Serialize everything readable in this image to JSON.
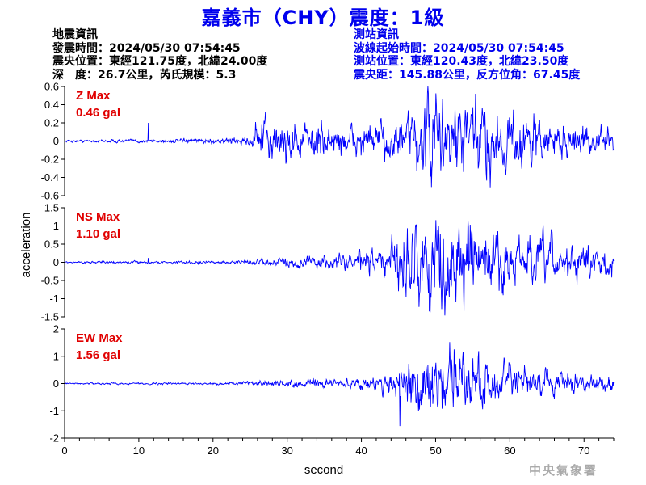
{
  "header": {
    "title": "嘉義市（CHY）震度：1級"
  },
  "earthquake_info": {
    "heading": "地震資訊",
    "origin_time": "發震時間：2024/05/30 07:54:45",
    "epicenter": "震央位置：東經121.75度，北緯24.00度",
    "depth_magnitude": "深　度：26.7公里，芮氏規模：5.3"
  },
  "station_info": {
    "heading": "測站資訊",
    "wave_start": "波線起始時間：2024/05/30 07:54:45",
    "location": "測站位置：東經120.43度，北緯23.50度",
    "distance_azimuth": "震央距：145.88公里，反方位角：67.45度"
  },
  "agency": "中央氣象署",
  "chart_data": {
    "type": "line",
    "x_label": "second",
    "y_label": "acceleration",
    "x_range": [
      0,
      74
    ],
    "x_ticks": [
      0,
      10,
      20,
      30,
      40,
      50,
      60,
      70
    ],
    "series_color": "#0000ff",
    "panels": [
      {
        "component": "Z",
        "max_label": "Z Max",
        "max_value": "0.46 gal",
        "y_range": [
          -0.6,
          0.6
        ],
        "y_ticks": [
          0.6,
          0.4,
          0.2,
          0,
          -0.2,
          -0.4,
          -0.6
        ],
        "amplitude_envelope": [
          [
            0,
            0.01
          ],
          [
            11,
            0.015
          ],
          [
            20,
            0.02
          ],
          [
            25,
            0.04
          ],
          [
            25.8,
            0.18
          ],
          [
            30,
            0.17
          ],
          [
            33,
            0.15
          ],
          [
            40,
            0.12
          ],
          [
            44,
            0.16
          ],
          [
            47,
            0.22
          ],
          [
            48,
            0.35
          ],
          [
            50,
            0.38
          ],
          [
            53,
            0.33
          ],
          [
            57,
            0.3
          ],
          [
            62,
            0.22
          ],
          [
            68,
            0.13
          ],
          [
            74,
            0.1
          ]
        ],
        "spikes": [
          [
            11.3,
            0.2
          ]
        ]
      },
      {
        "component": "NS",
        "max_label": "NS Max",
        "max_value": "1.10 gal",
        "y_range": [
          -1.5,
          1.5
        ],
        "y_ticks": [
          1.5,
          1,
          0.5,
          0,
          -0.5,
          -1,
          -1.5
        ],
        "amplitude_envelope": [
          [
            0,
            0.02
          ],
          [
            20,
            0.03
          ],
          [
            27,
            0.07
          ],
          [
            32,
            0.12
          ],
          [
            38,
            0.18
          ],
          [
            42,
            0.25
          ],
          [
            44,
            0.4
          ],
          [
            45,
            0.85
          ],
          [
            48,
            0.8
          ],
          [
            52,
            0.95
          ],
          [
            56,
            0.75
          ],
          [
            60,
            0.55
          ],
          [
            66,
            0.42
          ],
          [
            70,
            0.35
          ],
          [
            74,
            0.3
          ]
        ],
        "spikes": [
          [
            11.3,
            0.12
          ]
        ]
      },
      {
        "component": "EW",
        "max_label": "EW Max",
        "max_value": "1.56 gal",
        "y_range": [
          -2,
          2
        ],
        "y_ticks": [
          2,
          1,
          0,
          -1,
          -2
        ],
        "amplitude_envelope": [
          [
            0,
            0.02
          ],
          [
            20,
            0.03
          ],
          [
            27,
            0.08
          ],
          [
            33,
            0.1
          ],
          [
            38,
            0.14
          ],
          [
            42,
            0.2
          ],
          [
            44.5,
            0.35
          ],
          [
            45,
            0.85
          ],
          [
            47,
            0.8
          ],
          [
            50,
            0.75
          ],
          [
            52.5,
            0.95
          ],
          [
            56,
            0.65
          ],
          [
            60,
            0.45
          ],
          [
            66,
            0.3
          ],
          [
            74,
            0.22
          ]
        ],
        "spikes": [
          [
            45.2,
            -1.56
          ],
          [
            52.5,
            1.25
          ]
        ]
      }
    ]
  }
}
